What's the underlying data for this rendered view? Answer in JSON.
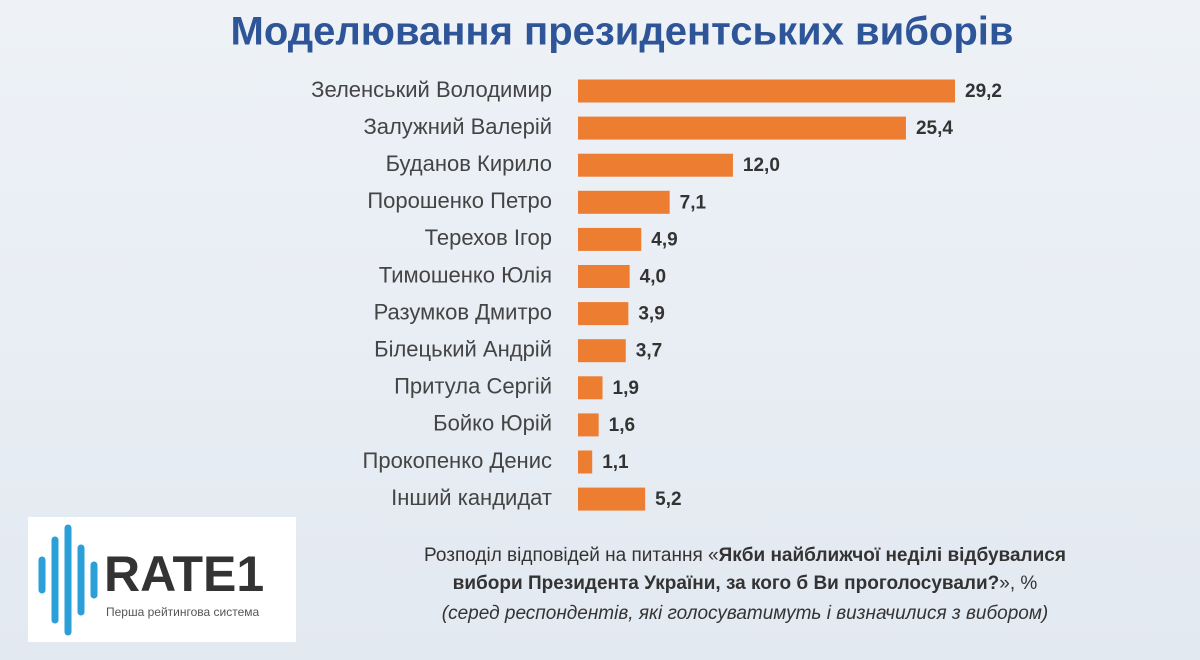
{
  "chart_data": {
    "type": "bar",
    "orientation": "horizontal",
    "title": "Моделювання президентських виборів",
    "categories": [
      "Зеленський Володимир",
      "Залужний Валерій",
      "Буданов Кирило",
      "Порошенко Петро",
      "Терехов Ігор",
      "Тимошенко Юлія",
      "Разумков Дмитро",
      "Білецький Андрій",
      "Притула Сергій",
      "Бойко Юрій",
      "Прокопенко Денис",
      "Інший кандидат"
    ],
    "values": [
      29.2,
      25.4,
      12.0,
      7.1,
      4.9,
      4.0,
      3.9,
      3.7,
      1.9,
      1.6,
      1.1,
      5.2
    ],
    "value_labels": [
      "29,2",
      "25,4",
      "12,0",
      "7,1",
      "4,9",
      "4,0",
      "3,9",
      "3,7",
      "1,9",
      "1,6",
      "1,1",
      "5,2"
    ],
    "color": "#ed7d31",
    "footnote": [
      "Розподіл відповідей на питання «",
      "Якби найближчої неділі відбувалися",
      "вибори Президента України, за кого б Ви проголосували?",
      "», %",
      "(серед респондентів, які голосуватимуть і визначилися з вибором)"
    ]
  },
  "logo": {
    "name": "RATE1",
    "tagline": "Перша рейтингова система"
  }
}
